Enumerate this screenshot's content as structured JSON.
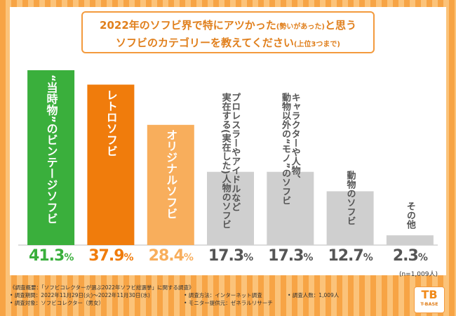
{
  "chart_data": {
    "type": "bar",
    "title_line1_main": "2022年のソフビ界で特にアツかった",
    "title_line1_note": "(勢いがあった)",
    "title_line1_tail": "と思う",
    "title_line2_main": "ソフビのカテゴリーを教えてください",
    "title_line2_note": "(上位3つまで)",
    "categories": [
      [
        "“当時物”のビンテージソフビ"
      ],
      [
        "レトロソフビ"
      ],
      [
        "オリジナルソフビ"
      ],
      [
        "プロレスラーやアイドルなど",
        "実在する(実在した)人物のソフビ"
      ],
      [
        "キャラクターや人物、",
        "動物以外の“モノ”のソフビ"
      ],
      [
        "動物のソフビ"
      ],
      [
        "その他"
      ]
    ],
    "values": [
      41.3,
      37.9,
      28.4,
      17.3,
      17.3,
      12.7,
      2.3
    ],
    "value_labels": [
      "41.3%",
      "37.9%",
      "28.4%",
      "17.3%",
      "17.3%",
      "12.7%",
      "2.3%"
    ],
    "bar_colors": [
      "#3aaf3c",
      "#f07c0c",
      "#f8ae5c",
      "#cfcfcf",
      "#cfcfcf",
      "#cfcfcf",
      "#cfcfcf"
    ],
    "label_colors": [
      "#ffffff",
      "#ffffff",
      "#ffffff",
      "#555555",
      "#555555",
      "#555555",
      "#555555"
    ],
    "value_colors": [
      "#3aaf3c",
      "#f07c0c",
      "#f8ae5c",
      "#555555",
      "#555555",
      "#555555",
      "#555555"
    ],
    "ylim": [
      0,
      45
    ],
    "sample_note": "(n=1,009人)"
  },
  "footer": {
    "overview": "《調査概要：「ソフビコレクターが選ぶ2022年ソフビ総選挙」に関する調査》",
    "period": "• 調査期間：2022年11月29日(火)～2022年11月30日(水)",
    "method": "• 調査方法：インターネット調査",
    "respondents": "• 調査人数：1,009人",
    "target": "• 調査対象：ソフビコレクター（男女）",
    "provider": "• モニター提供元：ゼネラルリサーチ"
  },
  "logo": {
    "mark": "TB",
    "text": "T-BASE"
  }
}
